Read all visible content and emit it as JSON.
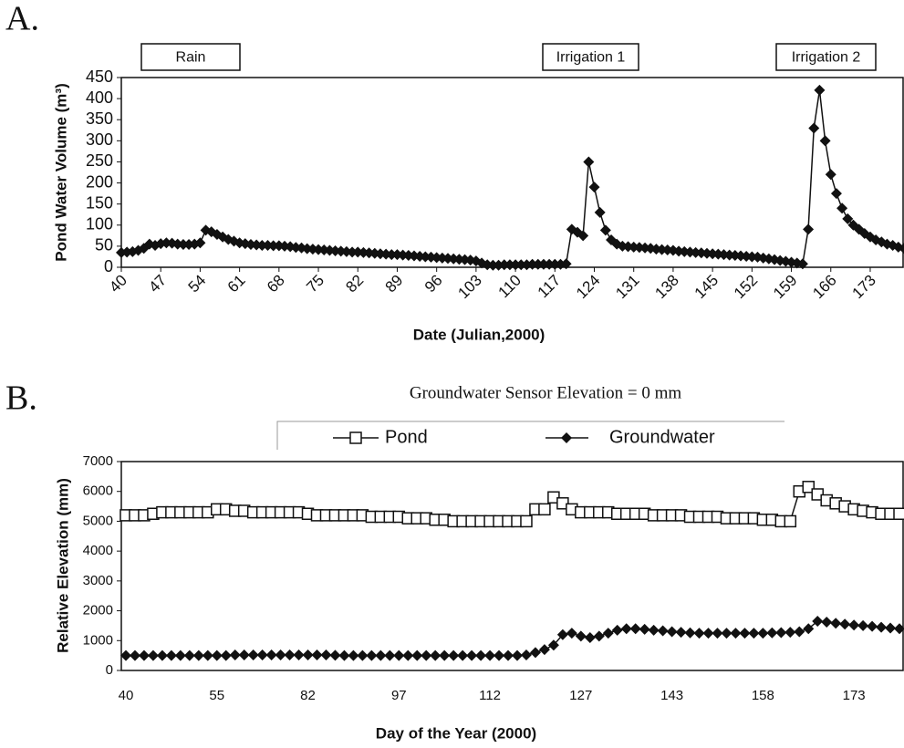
{
  "chart_data": [
    {
      "type": "line",
      "panel_label": "A.",
      "annotations": [
        "Rain",
        "Irrigation 1",
        "Irrigation 2"
      ],
      "ylabel": "Pond Water Volume (m³)",
      "xlabel": "Date (Julian,2000)",
      "x": [
        40,
        41,
        42,
        43,
        44,
        45,
        46,
        47,
        48,
        49,
        50,
        51,
        52,
        53,
        54,
        55,
        56,
        57,
        58,
        59,
        60,
        61,
        62,
        63,
        64,
        65,
        66,
        67,
        68,
        69,
        70,
        71,
        72,
        73,
        74,
        75,
        76,
        77,
        78,
        79,
        80,
        81,
        82,
        83,
        84,
        85,
        86,
        87,
        88,
        89,
        90,
        91,
        92,
        93,
        94,
        95,
        96,
        97,
        98,
        99,
        100,
        101,
        102,
        103,
        104,
        105,
        106,
        107,
        108,
        109,
        110,
        111,
        112,
        113,
        114,
        115,
        116,
        117,
        118,
        119,
        120,
        121,
        122,
        123,
        124,
        125,
        126,
        127,
        128,
        129,
        130,
        131,
        132,
        133,
        134,
        135,
        136,
        137,
        138,
        139,
        140,
        141,
        142,
        143,
        144,
        145,
        146,
        147,
        148,
        149,
        150,
        151,
        152,
        153,
        154,
        155,
        156,
        157,
        158,
        159,
        160,
        161,
        162,
        163,
        164,
        165,
        166,
        167,
        168,
        169,
        170,
        171,
        172,
        173,
        174,
        175,
        176,
        177,
        178,
        179
      ],
      "series": [
        {
          "color": "#111111",
          "marker": "diamond",
          "values": [
            35,
            36,
            37,
            40,
            45,
            55,
            52,
            56,
            58,
            57,
            55,
            54,
            54,
            55,
            58,
            88,
            84,
            78,
            72,
            66,
            62,
            58,
            56,
            54,
            53,
            52,
            52,
            51,
            51,
            50,
            49,
            47,
            46,
            44,
            43,
            42,
            41,
            40,
            39,
            38,
            37,
            36,
            36,
            35,
            34,
            33,
            32,
            31,
            30,
            30,
            29,
            28,
            27,
            26,
            25,
            24,
            23,
            22,
            21,
            20,
            19,
            18,
            17,
            15,
            10,
            6,
            5,
            5,
            6,
            6,
            6,
            6,
            6,
            7,
            7,
            7,
            7,
            7,
            7,
            8,
            90,
            83,
            75,
            250,
            190,
            130,
            88,
            65,
            55,
            50,
            49,
            48,
            47,
            46,
            45,
            43,
            42,
            41,
            40,
            38,
            37,
            36,
            35,
            34,
            33,
            32,
            31,
            30,
            29,
            28,
            27,
            26,
            25,
            24,
            22,
            20,
            18,
            16,
            14,
            12,
            10,
            8,
            90,
            330,
            420,
            300,
            220,
            175,
            140,
            115,
            100,
            90,
            80,
            72,
            65,
            60,
            55,
            52,
            48,
            45
          ]
        }
      ],
      "xlim": [
        40,
        179
      ],
      "xticks": [
        40,
        47,
        54,
        61,
        68,
        75,
        82,
        89,
        96,
        103,
        110,
        117,
        124,
        131,
        138,
        145,
        152,
        159,
        166,
        173
      ],
      "ylim": [
        0,
        450
      ],
      "yticks": [
        0,
        50,
        100,
        150,
        200,
        250,
        300,
        350,
        400,
        450
      ],
      "grid": false
    },
    {
      "type": "line",
      "panel_label": "B.",
      "title": "Groundwater Sensor Elevation = 0 mm",
      "ylabel": "Relative Elevation (mm)",
      "xlabel": "Day of the Year (2000)",
      "categories": [
        "40",
        null,
        null,
        null,
        null,
        null,
        null,
        null,
        null,
        null,
        "55",
        null,
        null,
        null,
        null,
        null,
        null,
        null,
        null,
        null,
        "82",
        null,
        null,
        null,
        null,
        null,
        null,
        null,
        null,
        null,
        "97",
        null,
        null,
        null,
        null,
        null,
        null,
        null,
        null,
        null,
        "112",
        null,
        null,
        null,
        null,
        null,
        null,
        null,
        null,
        null,
        "127",
        null,
        null,
        null,
        null,
        null,
        null,
        null,
        null,
        null,
        "143",
        null,
        null,
        null,
        null,
        null,
        null,
        null,
        null,
        null,
        "158",
        null,
        null,
        null,
        null,
        null,
        null,
        null,
        null,
        null,
        "173",
        null,
        null,
        null,
        null,
        null
      ],
      "series": [
        {
          "name": "Pond",
          "color": "#111111",
          "marker": "square",
          "values": [
            5200,
            5200,
            5200,
            5250,
            5300,
            5300,
            5300,
            5300,
            5300,
            5300,
            5400,
            5400,
            5350,
            5350,
            5300,
            5300,
            5300,
            5300,
            5300,
            5300,
            5250,
            5200,
            5200,
            5200,
            5200,
            5200,
            5200,
            5150,
            5150,
            5150,
            5150,
            5100,
            5100,
            5100,
            5050,
            5050,
            5000,
            5000,
            5000,
            5000,
            5000,
            5000,
            5000,
            5000,
            5000,
            5400,
            5400,
            5800,
            5600,
            5400,
            5300,
            5300,
            5300,
            5300,
            5250,
            5250,
            5250,
            5250,
            5200,
            5200,
            5200,
            5200,
            5150,
            5150,
            5150,
            5150,
            5100,
            5100,
            5100,
            5100,
            5050,
            5050,
            5000,
            5000,
            6000,
            6150,
            5900,
            5700,
            5600,
            5500,
            5400,
            5350,
            5300,
            5250,
            5250,
            5250
          ]
        },
        {
          "name": "Groundwater",
          "color": "#111111",
          "marker": "diamond",
          "values": [
            500,
            500,
            500,
            500,
            500,
            500,
            500,
            500,
            500,
            500,
            500,
            500,
            520,
            520,
            520,
            520,
            520,
            520,
            520,
            520,
            520,
            520,
            520,
            510,
            500,
            500,
            500,
            500,
            500,
            500,
            500,
            500,
            500,
            500,
            500,
            500,
            500,
            500,
            500,
            500,
            500,
            500,
            500,
            500,
            520,
            600,
            700,
            850,
            1200,
            1250,
            1150,
            1100,
            1150,
            1250,
            1350,
            1400,
            1400,
            1380,
            1350,
            1330,
            1300,
            1280,
            1260,
            1250,
            1250,
            1250,
            1250,
            1250,
            1250,
            1250,
            1250,
            1260,
            1270,
            1280,
            1300,
            1400,
            1650,
            1620,
            1580,
            1550,
            1520,
            1500,
            1480,
            1450,
            1420,
            1400
          ]
        }
      ],
      "ylim": [
        0,
        7000
      ],
      "yticks": [
        0,
        1000,
        2000,
        3000,
        4000,
        5000,
        6000,
        7000
      ],
      "grid": false
    }
  ]
}
